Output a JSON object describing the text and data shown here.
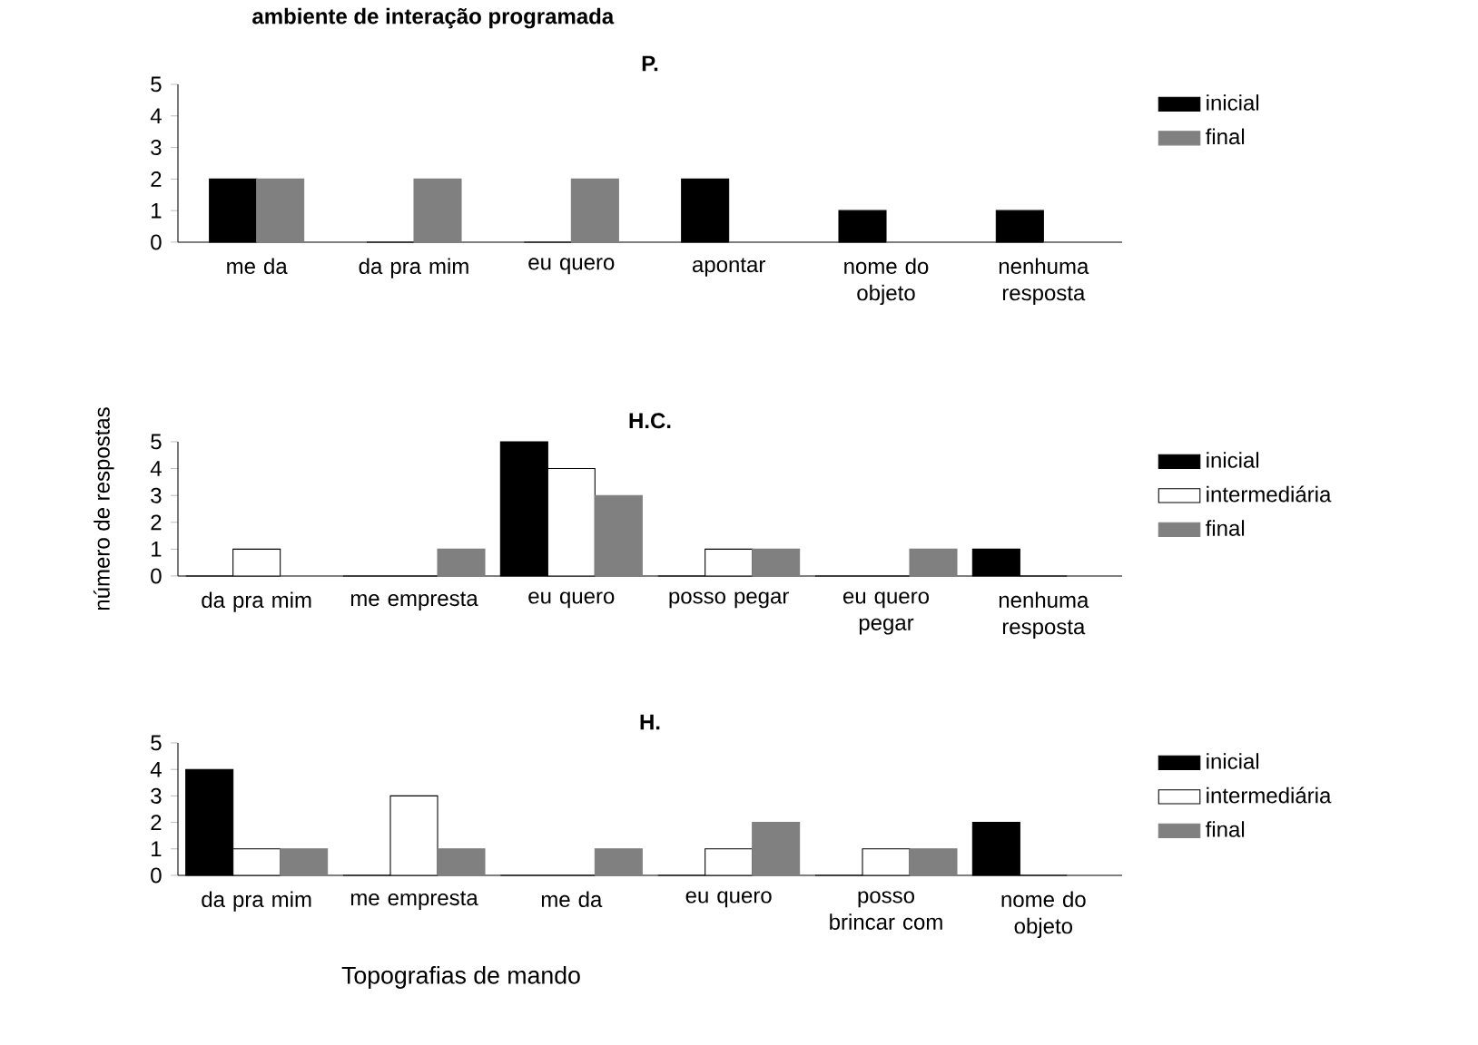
{
  "chart_data": [
    {
      "type": "bar",
      "title": "P.",
      "annotations": [
        "ambiente de interação programada"
      ],
      "categories": [
        "me da",
        "da pra mim",
        "eu quero",
        "apontar",
        "nome do objeto",
        "nenhuma resposta"
      ],
      "ylim": [
        0,
        5
      ],
      "yticks": [
        0,
        1,
        2,
        3,
        4,
        5
      ],
      "legend": "right",
      "series": [
        {
          "name": "inicial",
          "color": "#000000",
          "values": [
            2,
            0,
            0,
            2,
            1,
            1
          ]
        },
        {
          "name": "final",
          "color": "#808080",
          "values": [
            2,
            2,
            2,
            0,
            0,
            0
          ]
        }
      ]
    },
    {
      "type": "bar",
      "title": "H.C.",
      "ylabel": "número de respostas",
      "categories": [
        "da pra mim",
        "me empresta",
        "eu quero",
        "posso pegar",
        "eu quero pegar",
        "nenhuma resposta"
      ],
      "ylim": [
        0,
        5
      ],
      "yticks": [
        0,
        1,
        2,
        3,
        4,
        5
      ],
      "legend": "right",
      "series": [
        {
          "name": "inicial",
          "color": "#000000",
          "values": [
            0,
            0,
            5,
            0,
            0,
            1
          ]
        },
        {
          "name": "intermediária",
          "color": "#ffffff",
          "values": [
            1,
            0,
            4,
            1,
            0,
            0
          ]
        },
        {
          "name": "final",
          "color": "#808080",
          "values": [
            0,
            1,
            3,
            1,
            1,
            0
          ]
        }
      ]
    },
    {
      "type": "bar",
      "title": "H.",
      "xlabel": "Topografias de mando",
      "categories": [
        "da pra mim",
        "me empresta",
        "me da",
        "eu quero",
        "posso brincar com",
        "nome do objeto"
      ],
      "ylim": [
        0,
        5
      ],
      "yticks": [
        0,
        1,
        2,
        3,
        4,
        5
      ],
      "legend": "right",
      "series": [
        {
          "name": "inicial",
          "color": "#000000",
          "values": [
            4,
            0,
            0,
            0,
            0,
            2
          ]
        },
        {
          "name": "intermediária",
          "color": "#ffffff",
          "values": [
            1,
            3,
            0,
            1,
            1,
            0
          ]
        },
        {
          "name": "final",
          "color": "#808080",
          "values": [
            1,
            1,
            1,
            2,
            1,
            0
          ]
        }
      ]
    }
  ]
}
